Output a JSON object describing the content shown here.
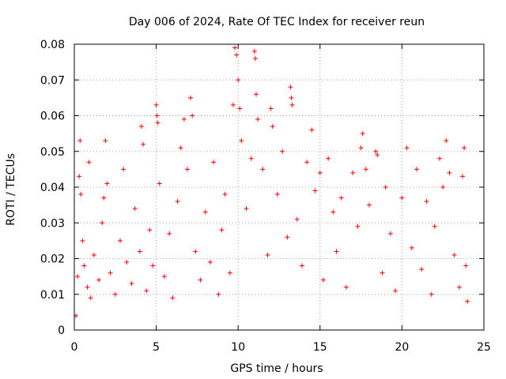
{
  "chart_data": {
    "type": "scatter",
    "title": "Day 006 of 2024, Rate Of TEC Index for receiver reun",
    "xlabel": "GPS time / hours",
    "ylabel": "ROTI / TECUs",
    "xlim": [
      0,
      25
    ],
    "ylim": [
      0,
      0.08
    ],
    "x_ticks": [
      0,
      5,
      10,
      15,
      20,
      25
    ],
    "y_ticks": [
      0,
      0.01,
      0.02,
      0.03,
      0.04,
      0.05,
      0.06,
      0.07,
      0.08
    ],
    "x_tick_labels": [
      "0",
      "5",
      "10",
      "15",
      "20",
      "25"
    ],
    "y_tick_labels": [
      "0",
      "0.01",
      "0.02",
      "0.03",
      "0.04",
      "0.05",
      "0.06",
      "0.07",
      "0.08"
    ],
    "grid": true,
    "marker": "+",
    "color": "#ff0000",
    "series": [
      {
        "points": [
          [
            0.1,
            0.004
          ],
          [
            0.2,
            0.015
          ],
          [
            0.3,
            0.043
          ],
          [
            0.35,
            0.053
          ],
          [
            0.4,
            0.038
          ],
          [
            0.5,
            0.025
          ],
          [
            0.6,
            0.018
          ],
          [
            0.8,
            0.012
          ],
          [
            0.9,
            0.047
          ],
          [
            1.0,
            0.009
          ],
          [
            1.2,
            0.021
          ],
          [
            1.5,
            0.014
          ],
          [
            1.7,
            0.03
          ],
          [
            1.8,
            0.037
          ],
          [
            1.9,
            0.053
          ],
          [
            2.0,
            0.041
          ],
          [
            2.2,
            0.016
          ],
          [
            2.5,
            0.01
          ],
          [
            2.8,
            0.025
          ],
          [
            3.0,
            0.045
          ],
          [
            3.2,
            0.019
          ],
          [
            3.5,
            0.013
          ],
          [
            3.7,
            0.034
          ],
          [
            4.0,
            0.022
          ],
          [
            4.1,
            0.057
          ],
          [
            4.2,
            0.052
          ],
          [
            4.4,
            0.011
          ],
          [
            4.6,
            0.028
          ],
          [
            4.8,
            0.018
          ],
          [
            5.0,
            0.063
          ],
          [
            5.05,
            0.06
          ],
          [
            5.1,
            0.058
          ],
          [
            5.2,
            0.041
          ],
          [
            5.5,
            0.015
          ],
          [
            5.8,
            0.027
          ],
          [
            6.0,
            0.009
          ],
          [
            6.3,
            0.036
          ],
          [
            6.5,
            0.051
          ],
          [
            6.7,
            0.059
          ],
          [
            6.9,
            0.045
          ],
          [
            7.1,
            0.065
          ],
          [
            7.2,
            0.06
          ],
          [
            7.4,
            0.022
          ],
          [
            7.7,
            0.014
          ],
          [
            8.0,
            0.033
          ],
          [
            8.3,
            0.019
          ],
          [
            8.5,
            0.047
          ],
          [
            8.8,
            0.01
          ],
          [
            9.0,
            0.028
          ],
          [
            9.2,
            0.038
          ],
          [
            9.5,
            0.016
          ],
          [
            9.7,
            0.063
          ],
          [
            9.8,
            0.079
          ],
          [
            9.9,
            0.077
          ],
          [
            10.0,
            0.07
          ],
          [
            10.1,
            0.062
          ],
          [
            10.2,
            0.053
          ],
          [
            10.5,
            0.034
          ],
          [
            10.8,
            0.048
          ],
          [
            11.0,
            0.078
          ],
          [
            11.05,
            0.076
          ],
          [
            11.1,
            0.066
          ],
          [
            11.2,
            0.059
          ],
          [
            11.5,
            0.045
          ],
          [
            11.8,
            0.021
          ],
          [
            12.0,
            0.062
          ],
          [
            12.1,
            0.057
          ],
          [
            12.4,
            0.038
          ],
          [
            12.7,
            0.05
          ],
          [
            13.0,
            0.026
          ],
          [
            13.2,
            0.068
          ],
          [
            13.25,
            0.065
          ],
          [
            13.3,
            0.063
          ],
          [
            13.6,
            0.031
          ],
          [
            13.9,
            0.018
          ],
          [
            14.2,
            0.047
          ],
          [
            14.5,
            0.056
          ],
          [
            14.7,
            0.039
          ],
          [
            15.0,
            0.044
          ],
          [
            15.2,
            0.014
          ],
          [
            15.5,
            0.048
          ],
          [
            15.8,
            0.033
          ],
          [
            16.0,
            0.022
          ],
          [
            16.3,
            0.037
          ],
          [
            16.6,
            0.012
          ],
          [
            17.0,
            0.044
          ],
          [
            17.3,
            0.029
          ],
          [
            17.5,
            0.051
          ],
          [
            17.6,
            0.055
          ],
          [
            17.8,
            0.045
          ],
          [
            18.0,
            0.035
          ],
          [
            18.4,
            0.05
          ],
          [
            18.5,
            0.049
          ],
          [
            18.8,
            0.016
          ],
          [
            19.0,
            0.04
          ],
          [
            19.3,
            0.027
          ],
          [
            19.6,
            0.011
          ],
          [
            20.0,
            0.037
          ],
          [
            20.3,
            0.051
          ],
          [
            20.6,
            0.023
          ],
          [
            20.9,
            0.045
          ],
          [
            21.2,
            0.017
          ],
          [
            21.5,
            0.036
          ],
          [
            21.8,
            0.01
          ],
          [
            22.0,
            0.029
          ],
          [
            22.3,
            0.048
          ],
          [
            22.5,
            0.04
          ],
          [
            22.7,
            0.053
          ],
          [
            22.9,
            0.044
          ],
          [
            23.2,
            0.021
          ],
          [
            23.5,
            0.012
          ],
          [
            23.7,
            0.043
          ],
          [
            23.8,
            0.051
          ],
          [
            23.9,
            0.018
          ],
          [
            24.0,
            0.008
          ]
        ]
      }
    ]
  }
}
